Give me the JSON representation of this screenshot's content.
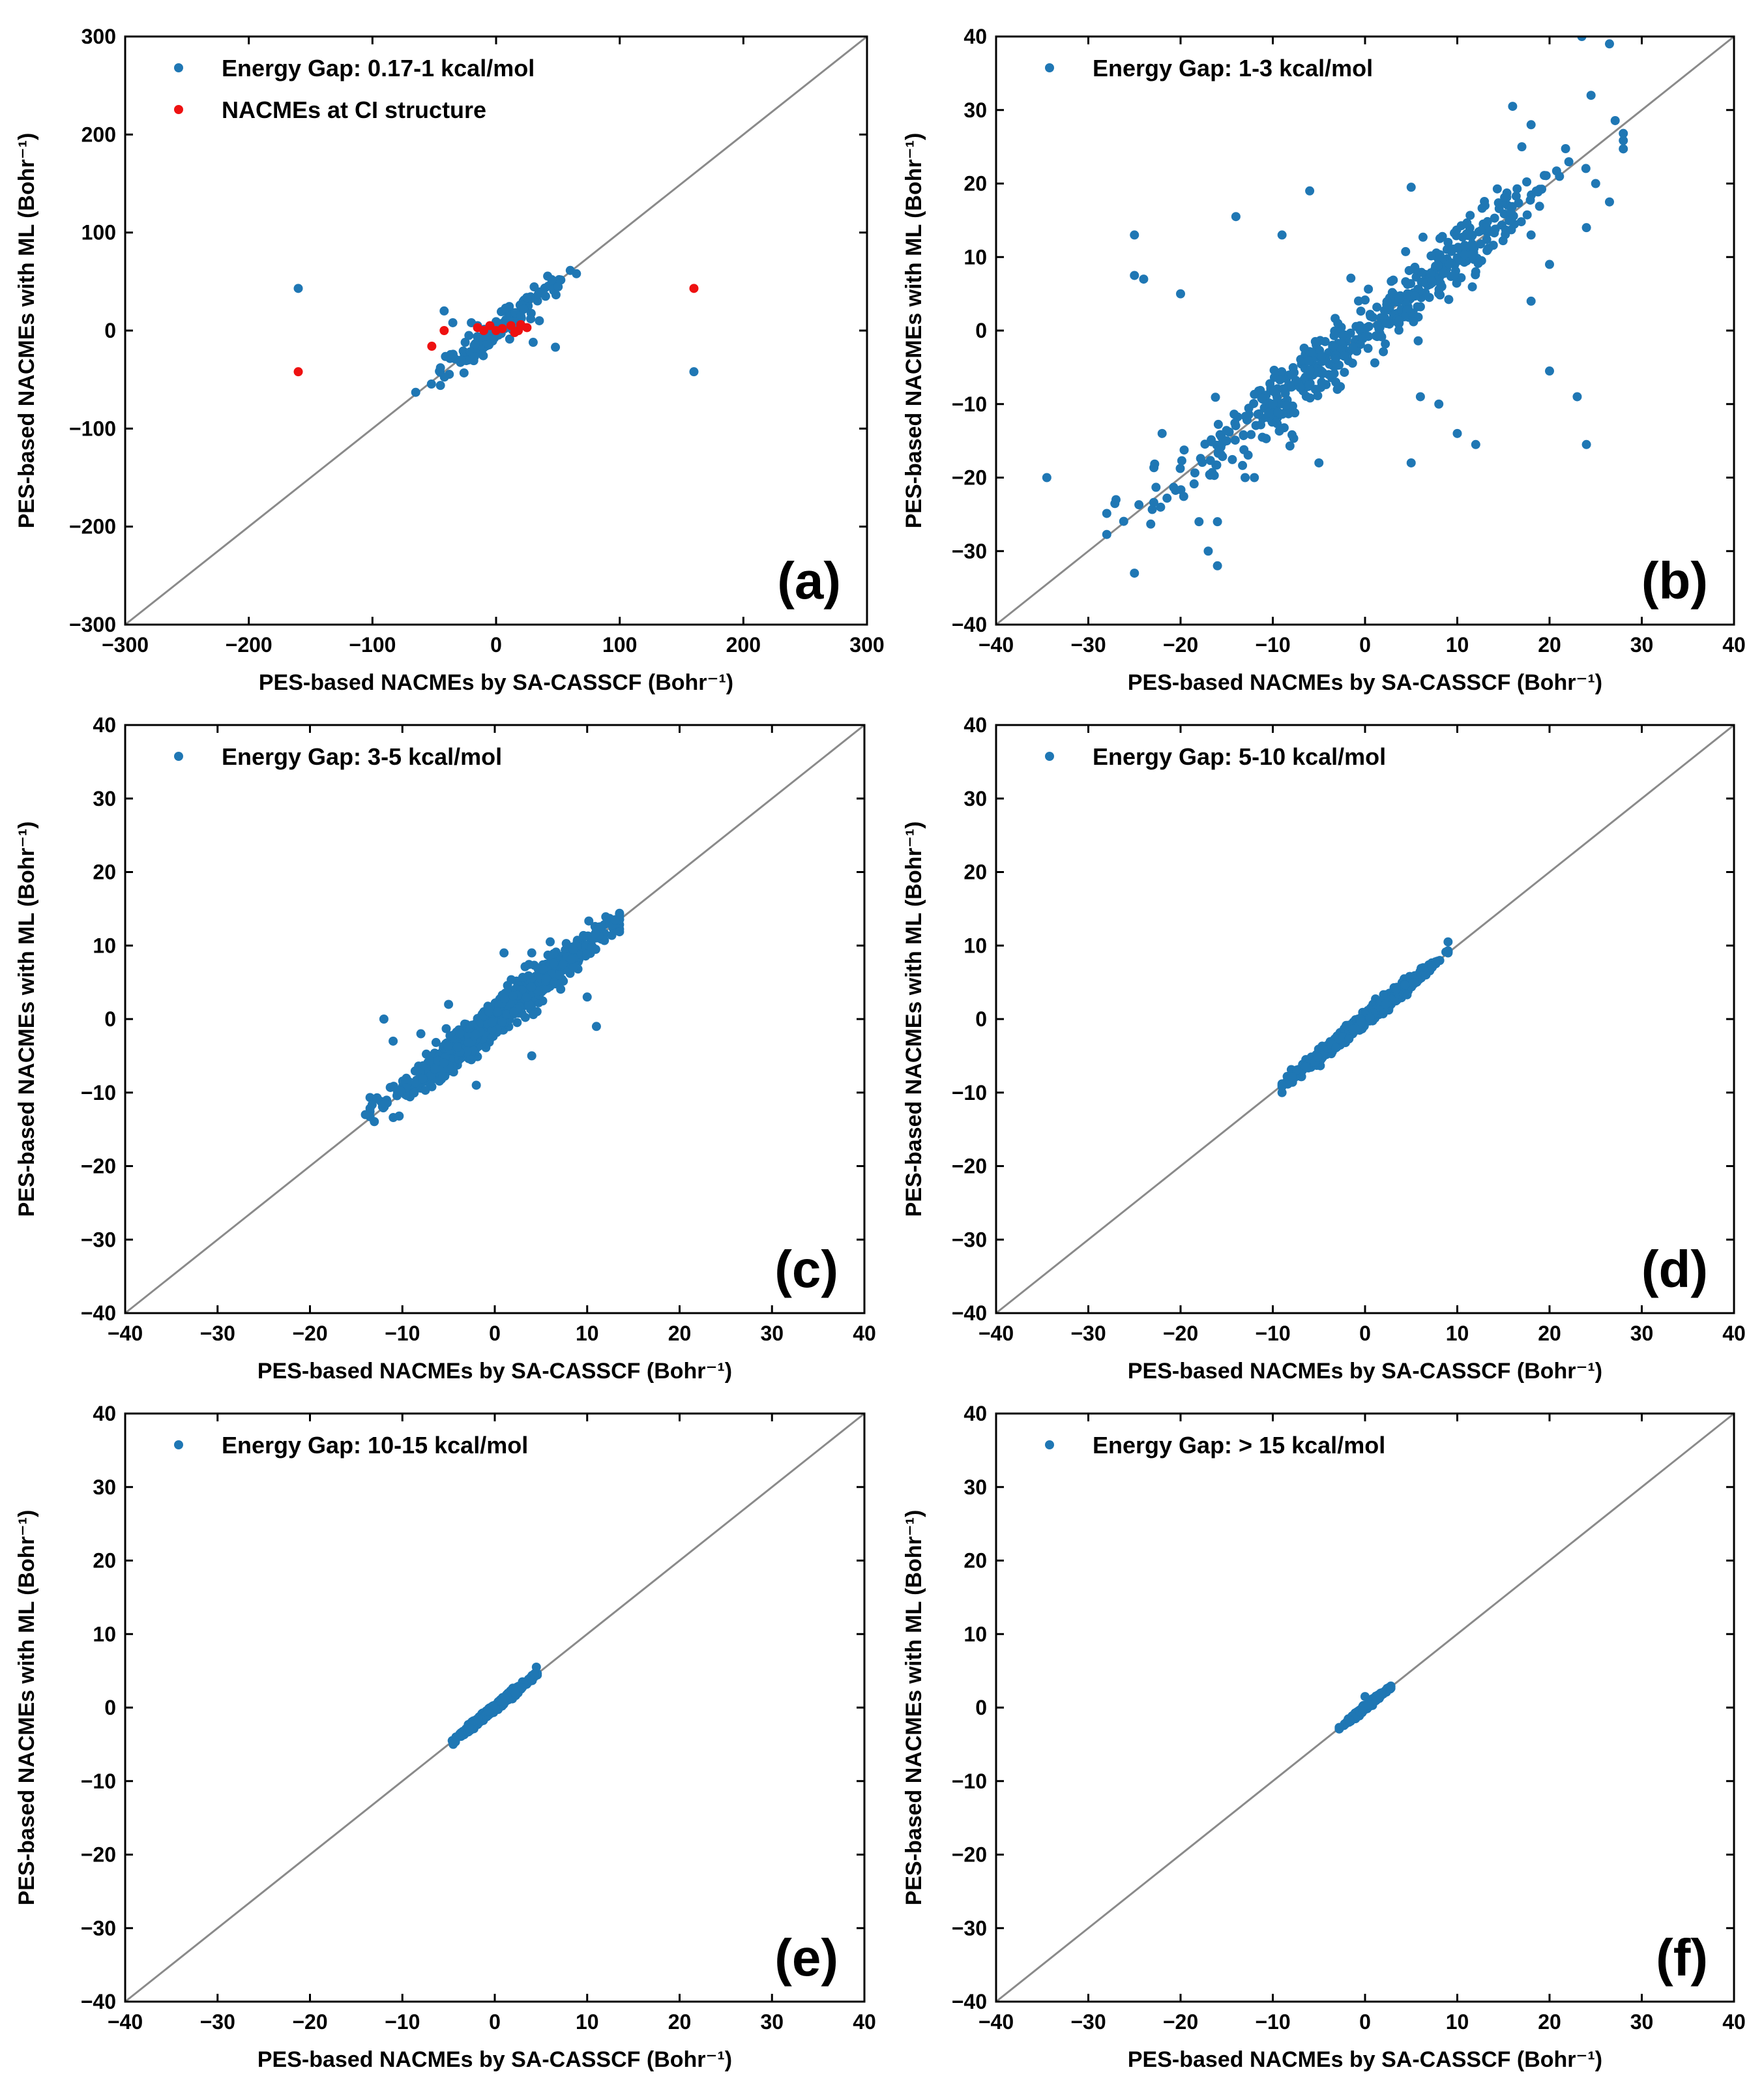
{
  "figure": {
    "colors": {
      "blue": "#1f77b4",
      "red": "#ee1111",
      "diagonal": "#8a8a8a"
    }
  },
  "chart_data": [
    {
      "type": "scatter",
      "panel": "(a)",
      "xlabel": "PES-based NACMEs by SA-CASSCF (Bohr⁻¹)",
      "ylabel": "PES-based NACMEs with ML (Bohr⁻¹)",
      "xlim": [
        -300,
        300
      ],
      "ylim": [
        -300,
        300
      ],
      "ticks": [
        -300,
        -200,
        -100,
        0,
        100,
        200,
        300
      ],
      "tick_labels": [
        "−300",
        "−200",
        "−100",
        "0",
        "100",
        "200",
        "300"
      ],
      "diagonal": true,
      "legend": "upper-left",
      "series": [
        {
          "name": "Energy Gap: 0.17-1 kcal/mol",
          "color": "#1f77b4",
          "spread": 10,
          "clip": 60,
          "n": 120,
          "points": [
            [
              -160,
              43
            ],
            [
              160,
              -42
            ],
            [
              -65,
              -63
            ],
            [
              -45,
              -56
            ],
            [
              -45,
              -38
            ],
            [
              -42,
              20
            ],
            [
              -35,
              8
            ],
            [
              -28,
              -30
            ],
            [
              -25,
              -12
            ],
            [
              -22,
              -5
            ],
            [
              -20,
              8
            ],
            [
              -15,
              5
            ],
            [
              45,
              52
            ],
            [
              65,
              58
            ],
            [
              48,
              -17
            ],
            [
              30,
              -12
            ],
            [
              28,
              12
            ],
            [
              40,
              35
            ],
            [
              35,
              10
            ],
            [
              20,
              15
            ]
          ]
        },
        {
          "name": "NACMEs at CI structure",
          "color": "#ee1111",
          "spread": 0,
          "clip": 0,
          "n": 0,
          "points": [
            [
              -160,
              -42
            ],
            [
              160,
              43
            ],
            [
              -52,
              -16
            ],
            [
              -42,
              0
            ],
            [
              -15,
              3
            ],
            [
              -10,
              0
            ],
            [
              -5,
              5
            ],
            [
              0,
              0
            ],
            [
              5,
              2
            ],
            [
              12,
              5
            ],
            [
              18,
              0
            ],
            [
              20,
              6
            ],
            [
              25,
              3
            ],
            [
              15,
              -2
            ]
          ]
        }
      ]
    },
    {
      "type": "scatter",
      "panel": "(b)",
      "xlabel": "PES-based NACMEs by SA-CASSCF (Bohr⁻¹)",
      "ylabel": "PES-based NACMEs with ML (Bohr⁻¹)",
      "xlim": [
        -40,
        40
      ],
      "ylim": [
        -40,
        40
      ],
      "ticks": [
        -40,
        -30,
        -20,
        -10,
        0,
        10,
        20,
        30,
        40
      ],
      "tick_labels": [
        "−40",
        "−30",
        "−20",
        "−10",
        "0",
        "10",
        "20",
        "30",
        "40"
      ],
      "diagonal": true,
      "legend": "upper-left",
      "series": [
        {
          "name": "Energy Gap: 1-3 kcal/mol",
          "color": "#1f77b4",
          "spread": 3.0,
          "clip": 28,
          "n": 500,
          "points": [
            [
              -34.5,
              -20
            ],
            [
              -27,
              -23
            ],
            [
              -25,
              -33
            ],
            [
              -25,
              13
            ],
            [
              -25,
              7.5
            ],
            [
              -24,
              7
            ],
            [
              -22,
              -14
            ],
            [
              -20,
              5
            ],
            [
              -18,
              -26
            ],
            [
              -17,
              -30
            ],
            [
              -16,
              -32
            ],
            [
              -16,
              -26
            ],
            [
              -15,
              -15
            ],
            [
              -14,
              15.5
            ],
            [
              -13,
              -20
            ],
            [
              -12,
              -20
            ],
            [
              -9,
              13
            ],
            [
              -8,
              -6
            ],
            [
              -6,
              19
            ],
            [
              -5,
              -18
            ],
            [
              -3,
              -8
            ],
            [
              5,
              19.5
            ],
            [
              5,
              -18
            ],
            [
              6,
              -9
            ],
            [
              8,
              -10
            ],
            [
              9,
              12
            ],
            [
              10,
              -14
            ],
            [
              12,
              -15.5
            ],
            [
              13,
              17
            ],
            [
              16,
              30.5
            ],
            [
              17,
              25
            ],
            [
              18,
              28
            ],
            [
              18,
              4
            ],
            [
              18,
              13
            ],
            [
              20,
              -5.5
            ],
            [
              23,
              -9
            ],
            [
              23.5,
              40
            ],
            [
              24,
              14
            ],
            [
              24,
              -15.5
            ],
            [
              24.5,
              32
            ],
            [
              25,
              20
            ],
            [
              26.5,
              39
            ],
            [
              26.5,
              17.5
            ],
            [
              12,
              8
            ],
            [
              20,
              9
            ],
            [
              -10,
              -10
            ]
          ]
        }
      ]
    },
    {
      "type": "scatter",
      "panel": "(c)",
      "xlabel": "PES-based NACMEs by SA-CASSCF (Bohr⁻¹)",
      "ylabel": "PES-based NACMEs with ML (Bohr⁻¹)",
      "xlim": [
        -40,
        40
      ],
      "ylim": [
        -40,
        40
      ],
      "ticks": [
        -40,
        -30,
        -20,
        -10,
        0,
        10,
        20,
        30,
        40
      ],
      "tick_labels": [
        "−40",
        "−30",
        "−20",
        "−10",
        "0",
        "10",
        "20",
        "30",
        "40"
      ],
      "diagonal": true,
      "legend": "upper-left",
      "series": [
        {
          "name": "Energy Gap: 3-5 kcal/mol",
          "color": "#1f77b4",
          "spread": 1.4,
          "clip": 13.5,
          "n": 1400,
          "points": [
            [
              -14,
              -13
            ],
            [
              -12,
              0
            ],
            [
              -11,
              -3
            ],
            [
              -8,
              -2
            ],
            [
              -2,
              -9
            ],
            [
              4,
              -5
            ],
            [
              4,
              9
            ],
            [
              13,
              13.5
            ],
            [
              11,
              -1
            ],
            [
              7,
              6
            ],
            [
              -5,
              2
            ],
            [
              1,
              9
            ],
            [
              10,
              3
            ]
          ]
        }
      ]
    },
    {
      "type": "scatter",
      "panel": "(d)",
      "xlabel": "PES-based NACMEs by SA-CASSCF (Bohr⁻¹)",
      "ylabel": "PES-based NACMEs with ML (Bohr⁻¹)",
      "xlim": [
        -40,
        40
      ],
      "ylim": [
        -40,
        40
      ],
      "ticks": [
        -40,
        -30,
        -20,
        -10,
        0,
        10,
        20,
        30,
        40
      ],
      "tick_labels": [
        "−40",
        "−30",
        "−20",
        "−10",
        "0",
        "10",
        "20",
        "30",
        "40"
      ],
      "diagonal": true,
      "legend": "upper-left",
      "series": [
        {
          "name": "Energy Gap: 5-10 kcal/mol",
          "color": "#1f77b4",
          "spread": 0.55,
          "clip": 9,
          "n": 1200,
          "points": [
            [
              -9,
              -10
            ],
            [
              9,
              10.5
            ],
            [
              -9,
              -9
            ],
            [
              9,
              9
            ]
          ]
        }
      ]
    },
    {
      "type": "scatter",
      "panel": "(e)",
      "xlabel": "PES-based NACMEs by SA-CASSCF (Bohr⁻¹)",
      "ylabel": "PES-based NACMEs with ML (Bohr⁻¹)",
      "xlim": [
        -40,
        40
      ],
      "ylim": [
        -40,
        40
      ],
      "ticks": [
        -40,
        -30,
        -20,
        -10,
        0,
        10,
        20,
        30,
        40
      ],
      "tick_labels": [
        "−40",
        "−30",
        "−20",
        "−10",
        "0",
        "10",
        "20",
        "30",
        "40"
      ],
      "diagonal": true,
      "legend": "upper-left",
      "series": [
        {
          "name": "Energy Gap: 10-15 kcal/mol",
          "color": "#1f77b4",
          "spread": 0.3,
          "clip": 4.6,
          "n": 800,
          "points": [
            [
              -4.5,
              -5
            ],
            [
              4.5,
              5.5
            ],
            [
              -4.2,
              -4
            ],
            [
              4.3,
              4.6
            ]
          ]
        }
      ]
    },
    {
      "type": "scatter",
      "panel": "(f)",
      "xlabel": "PES-based NACMEs by SA-CASSCF (Bohr⁻¹)",
      "ylabel": "PES-based NACMEs with ML (Bohr⁻¹)",
      "xlim": [
        -40,
        40
      ],
      "ylim": [
        -40,
        40
      ],
      "ticks": [
        -40,
        -30,
        -20,
        -10,
        0,
        10,
        20,
        30,
        40
      ],
      "tick_labels": [
        "−40",
        "−30",
        "−20",
        "−10",
        "0",
        "10",
        "20",
        "30",
        "40"
      ],
      "diagonal": true,
      "legend": "upper-left",
      "series": [
        {
          "name": "Energy Gap: > 15 kcal/mol",
          "color": "#1f77b4",
          "spread": 0.2,
          "clip": 2.8,
          "n": 400,
          "points": [
            [
              -2.8,
              -2.7
            ],
            [
              2.8,
              2.8
            ],
            [
              0,
              1.5
            ]
          ]
        }
      ]
    }
  ]
}
